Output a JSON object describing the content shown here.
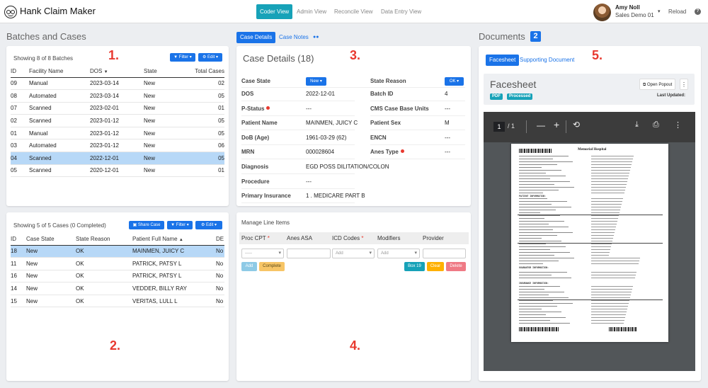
{
  "app": {
    "title": "Hank Claim Maker"
  },
  "nav": [
    {
      "label": "Coder View",
      "active": true
    },
    {
      "label": "Admin View",
      "active": false
    },
    {
      "label": "Reconcile View",
      "active": false
    },
    {
      "label": "Data Entry View",
      "active": false
    }
  ],
  "user": {
    "name": "Amy Noll",
    "org": "Sales Demo 01",
    "reload": "Reload",
    "help": "?"
  },
  "annotations": [
    "1.",
    "2.",
    "3.",
    "4.",
    "5."
  ],
  "batches": {
    "heading": "Batches and Cases",
    "showing": "Showing 8 of 8 Batches",
    "filter_label": "Filter",
    "edit_label": "Edit",
    "columns": [
      "ID",
      "Facility Name",
      "DOS",
      "State",
      "Total Cases"
    ],
    "sorted_column": "DOS",
    "rows": [
      {
        "id": "09",
        "facility": "Manual",
        "dos": "2023-03-14",
        "state": "New",
        "total": "02",
        "selected": false
      },
      {
        "id": "08",
        "facility": "Automated",
        "dos": "2023-03-14",
        "state": "New",
        "total": "05",
        "selected": false
      },
      {
        "id": "07",
        "facility": "Scanned",
        "dos": "2023-02-01",
        "state": "New",
        "total": "01",
        "selected": false
      },
      {
        "id": "02",
        "facility": "Scanned",
        "dos": "2023-01-12",
        "state": "New",
        "total": "05",
        "selected": false
      },
      {
        "id": "01",
        "facility": "Manual",
        "dos": "2023-01-12",
        "state": "New",
        "total": "05",
        "selected": false
      },
      {
        "id": "03",
        "facility": "Automated",
        "dos": "2023-01-12",
        "state": "New",
        "total": "06",
        "selected": false
      },
      {
        "id": "04",
        "facility": "Scanned",
        "dos": "2022-12-01",
        "state": "New",
        "total": "05",
        "selected": true
      },
      {
        "id": "05",
        "facility": "Scanned",
        "dos": "2020-12-01",
        "state": "New",
        "total": "01",
        "selected": false
      }
    ]
  },
  "cases": {
    "showing": "Showing 5 of 5 Cases (0 Completed)",
    "share_label": "Share Case",
    "filter_label": "Filter",
    "edit_label": "Edit",
    "columns": [
      "ID",
      "Case State",
      "State Reason",
      "Patient Full Name",
      "DE"
    ],
    "sorted_column": "Patient Full Name",
    "rows": [
      {
        "id": "18",
        "state": "New",
        "reason": "OK",
        "name": "MAINMEN, JUICY C",
        "de": "No",
        "selected": true
      },
      {
        "id": "11",
        "state": "New",
        "reason": "OK",
        "name": "PATRICK, PATSY L",
        "de": "No",
        "selected": false
      },
      {
        "id": "16",
        "state": "New",
        "reason": "OK",
        "name": "PATRICK, PATSY L",
        "de": "No",
        "selected": false
      },
      {
        "id": "14",
        "state": "New",
        "reason": "OK",
        "name": "VEDDER, BILLY RAY",
        "de": "No",
        "selected": false
      },
      {
        "id": "15",
        "state": "New",
        "reason": "OK",
        "name": "VERITAS, LULL L",
        "de": "No",
        "selected": false
      }
    ]
  },
  "case_details": {
    "tabs": [
      {
        "label": "Case Details",
        "active": true
      },
      {
        "label": "Case Notes",
        "active": false
      }
    ],
    "title": "Case Details (18)",
    "case_state_label": "Case State",
    "case_state_value": "New",
    "state_reason_label": "State Reason",
    "state_reason_value": "OK",
    "fields_left": [
      {
        "label": "DOS",
        "value": "2022-12-01",
        "required": false
      },
      {
        "label": "P-Status",
        "value": "---",
        "required": true
      },
      {
        "label": "Patient Name",
        "value": "MAINMEN, JUICY C",
        "required": false
      },
      {
        "label": "DoB (Age)",
        "value": "1961-03-29 (62)",
        "required": false
      },
      {
        "label": "MRN",
        "value": "000028604",
        "required": false
      },
      {
        "label": "Diagnosis",
        "value": "EGD POSS DILITATION/COLON",
        "required": false
      },
      {
        "label": "Procedure",
        "value": "---",
        "required": false
      },
      {
        "label": "Primary Insurance",
        "value": "1 . MEDICARE PART B",
        "required": false
      }
    ],
    "fields_right": [
      {
        "label": "Batch ID",
        "value": "4",
        "required": false
      },
      {
        "label": "CMS Case Base Units",
        "value": "---",
        "required": false
      },
      {
        "label": "Patient Sex",
        "value": "M",
        "required": false
      },
      {
        "label": "ENCN",
        "value": "---",
        "required": false
      },
      {
        "label": "Anes Type",
        "value": "---",
        "required": true
      }
    ]
  },
  "line_items": {
    "title": "Manage Line Items",
    "columns": [
      {
        "label": "Proc CPT",
        "required": true
      },
      {
        "label": "Anes ASA",
        "required": false
      },
      {
        "label": "ICD Codes",
        "required": true
      },
      {
        "label": "Modifiers",
        "required": false
      },
      {
        "label": "Provider",
        "required": false
      }
    ],
    "proc_placeholder": "-----",
    "icd_placeholder": "Add",
    "modifiers_placeholder": "Add",
    "buttons": {
      "add": "Add",
      "complete": "Complete",
      "box": "Box 19",
      "clear": "Clear",
      "delete": "Delete"
    }
  },
  "documents": {
    "heading": "Documents",
    "count": "2",
    "tabs": [
      {
        "label": "Facesheet",
        "active": true
      },
      {
        "label": "Supporting Document",
        "active": false
      }
    ],
    "doc_title": "Facesheet",
    "badges": [
      "PDF",
      "Processed"
    ],
    "popout_label": "Open Popout",
    "last_updated_label": "Last Updated:",
    "pdf": {
      "page": "1",
      "pages": "/ 1",
      "hospital": "Memorial Hospital",
      "patient_info": "PATIENT INFORMATION:",
      "guarantor": "GUARANTOR INFORMATION:",
      "insurance": "INSURANCE INFORMATION:"
    }
  },
  "colors": {
    "primary": "#1a73e8",
    "teal": "#17a2b8",
    "selected_row": "#b7d8f7",
    "annotation": "#e8392f",
    "processed": "#17a2b8",
    "add": "#8ecae6",
    "complete": "#f7c566",
    "box": "#17a2b8",
    "clear": "#ffb000",
    "delete": "#ef7a85"
  }
}
